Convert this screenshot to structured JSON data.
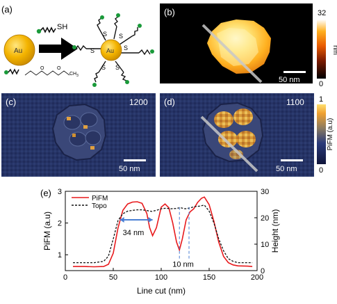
{
  "panels": {
    "a": {
      "label": "(a)",
      "au_label": "Au",
      "sh_label": "SH",
      "s_label": "S",
      "peg_formula_tail": "CH",
      "peg_formula_sub": "3",
      "o_label": "O"
    },
    "b": {
      "label": "(b)",
      "scalebar_label": "50 nm",
      "colorbar": {
        "max": "32",
        "min": "0",
        "unit": "nm"
      }
    },
    "c": {
      "label": "(c)",
      "wavenumber": "1200",
      "scalebar_label": "50 nm"
    },
    "d": {
      "label": "(d)",
      "wavenumber": "1100",
      "scalebar_label": "50 nm"
    },
    "cd_colorbar": {
      "max": "1",
      "min": "0",
      "unit": "PiFM (a.u)"
    },
    "e": {
      "label": "(e)",
      "annotation_34": "34 nm",
      "annotation_10": "10 nm"
    }
  },
  "chart_data": {
    "type": "line",
    "xlabel": "Line cut (nm)",
    "ylabel": "PiFM (a.u)",
    "y2label": "Height (nm)",
    "xlim": [
      0,
      200
    ],
    "ylim": [
      0.5,
      3.0
    ],
    "y2lim": [
      0,
      30
    ],
    "xticks": [
      "0",
      "50",
      "100",
      "150",
      "200"
    ],
    "yticks": [
      "1",
      "2",
      "3"
    ],
    "y2ticks": [
      "0",
      "10",
      "20",
      "30"
    ],
    "legend": [
      "PiFM",
      "Topo"
    ],
    "legend_position": "top-left",
    "series": [
      {
        "name": "PiFM",
        "axis": "left",
        "color": "#e8191c",
        "style": "solid",
        "x": [
          8,
          20,
          30,
          40,
          45,
          50,
          55,
          60,
          65,
          70,
          75,
          80,
          85,
          88,
          91,
          95,
          100,
          104,
          108,
          112,
          116,
          119,
          122,
          126,
          130,
          134,
          138,
          142,
          145,
          150,
          155,
          160,
          165,
          170,
          175,
          180,
          190,
          195
        ],
        "y": [
          0.63,
          0.63,
          0.62,
          0.63,
          0.7,
          1.05,
          1.85,
          2.4,
          2.6,
          2.66,
          2.67,
          2.62,
          2.3,
          1.85,
          1.6,
          1.85,
          2.5,
          2.6,
          2.48,
          2.0,
          1.4,
          1.15,
          1.5,
          2.1,
          2.35,
          2.45,
          2.65,
          2.78,
          2.82,
          2.58,
          2.05,
          1.4,
          0.95,
          0.75,
          0.68,
          0.65,
          0.64,
          0.63
        ]
      },
      {
        "name": "Topo",
        "axis": "right",
        "color": "#111111",
        "style": "dashed",
        "x": [
          8,
          20,
          30,
          40,
          45,
          50,
          55,
          60,
          65,
          70,
          75,
          80,
          85,
          90,
          95,
          100,
          105,
          110,
          115,
          120,
          125,
          130,
          135,
          140,
          145,
          150,
          155,
          160,
          165,
          170,
          175,
          180,
          190,
          195
        ],
        "y": [
          3,
          3,
          3,
          3.5,
          5.5,
          12,
          19,
          21.5,
          22.5,
          22.8,
          23,
          23,
          22.7,
          22.4,
          22.8,
          23.4,
          23.6,
          23.4,
          23.5,
          23.8,
          23.4,
          23.7,
          24.2,
          24.4,
          24.8,
          22.5,
          18,
          12,
          7.5,
          4.5,
          3.5,
          3,
          3,
          3
        ]
      }
    ],
    "annotations": [
      {
        "text": "34 nm",
        "x_from": 57,
        "x_to": 91,
        "y": 2.1
      },
      {
        "text": "10 nm",
        "x_at": 119,
        "x_at2": 129
      }
    ]
  }
}
